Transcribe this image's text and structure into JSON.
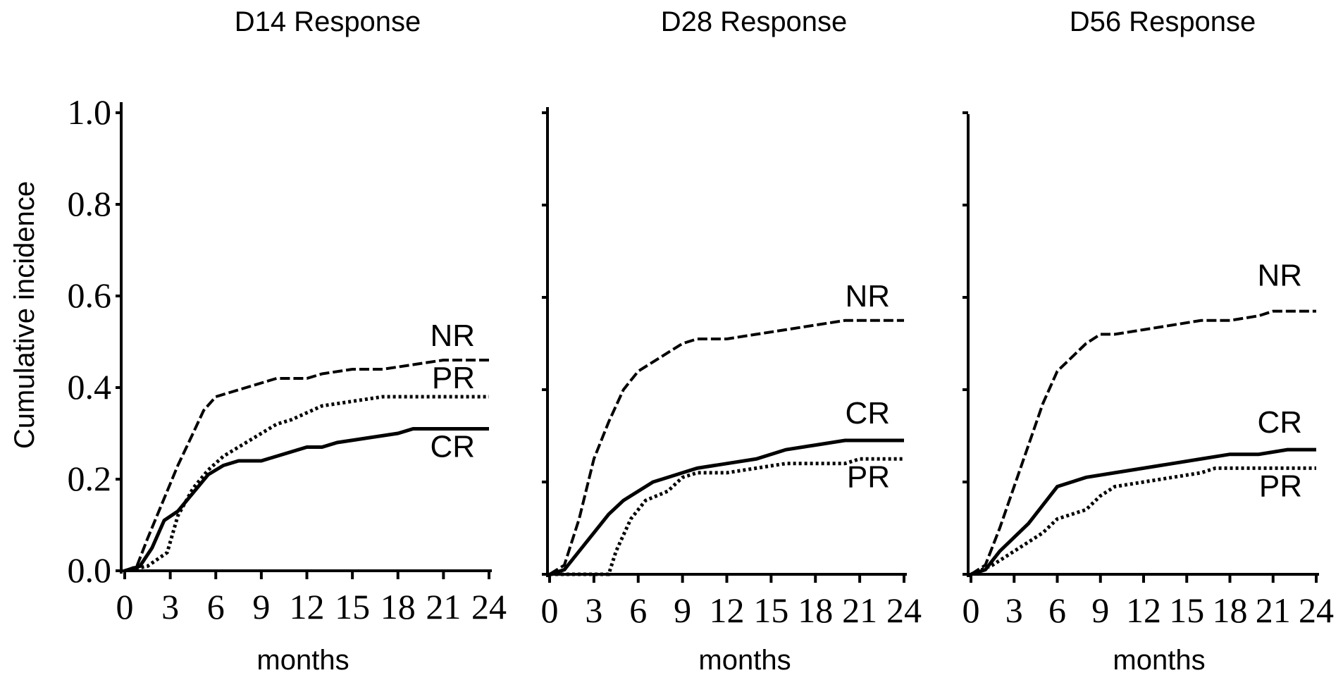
{
  "chart_data": [
    {
      "type": "line",
      "title": "D14 Response",
      "xlabel": "months",
      "ylabel": "Cumulative incidence",
      "xlim": [
        0,
        24
      ],
      "ylim": [
        0,
        1.0
      ],
      "x_ticks": [
        "0",
        "3",
        "6",
        "9",
        "12",
        "15",
        "18",
        "21",
        "24"
      ],
      "y_ticks": [
        "0.0",
        "0.2",
        "0.4",
        "0.6",
        "0.8",
        "1.0"
      ],
      "grid": false,
      "legend": "labels at right end of curves",
      "series": [
        {
          "name": "NR",
          "style": "dashed",
          "points": [
            [
              0,
              0
            ],
            [
              0.8,
              0.01
            ],
            [
              1.5,
              0.07
            ],
            [
              2.5,
              0.15
            ],
            [
              3.5,
              0.23
            ],
            [
              4.5,
              0.3
            ],
            [
              5.2,
              0.35
            ],
            [
              6,
              0.38
            ],
            [
              7,
              0.39
            ],
            [
              8,
              0.4
            ],
            [
              9,
              0.41
            ],
            [
              10,
              0.42
            ],
            [
              12,
              0.42
            ],
            [
              13,
              0.43
            ],
            [
              15,
              0.44
            ],
            [
              17,
              0.44
            ],
            [
              19,
              0.45
            ],
            [
              21,
              0.46
            ],
            [
              24,
              0.46
            ]
          ]
        },
        {
          "name": "PR",
          "style": "dotted",
          "points": [
            [
              0,
              0
            ],
            [
              1.5,
              0.01
            ],
            [
              2.8,
              0.04
            ],
            [
              3.5,
              0.12
            ],
            [
              4.5,
              0.18
            ],
            [
              5.5,
              0.22
            ],
            [
              6.5,
              0.25
            ],
            [
              8,
              0.28
            ],
            [
              9,
              0.3
            ],
            [
              10,
              0.32
            ],
            [
              11,
              0.33
            ],
            [
              13,
              0.36
            ],
            [
              15,
              0.37
            ],
            [
              17,
              0.38
            ],
            [
              24,
              0.38
            ]
          ]
        },
        {
          "name": "CR",
          "style": "solid",
          "points": [
            [
              0,
              0
            ],
            [
              1,
              0.01
            ],
            [
              1.8,
              0.05
            ],
            [
              2.6,
              0.11
            ],
            [
              3.5,
              0.13
            ],
            [
              4.5,
              0.17
            ],
            [
              5.5,
              0.21
            ],
            [
              6.5,
              0.23
            ],
            [
              7.5,
              0.24
            ],
            [
              9,
              0.24
            ],
            [
              10,
              0.25
            ],
            [
              11,
              0.26
            ],
            [
              12,
              0.27
            ],
            [
              13,
              0.27
            ],
            [
              14,
              0.28
            ],
            [
              16,
              0.29
            ],
            [
              18,
              0.3
            ],
            [
              19,
              0.31
            ],
            [
              24,
              0.31
            ]
          ]
        }
      ]
    },
    {
      "type": "line",
      "title": "D28 Response",
      "xlabel": "months",
      "ylabel": "",
      "xlim": [
        0,
        24
      ],
      "ylim": [
        0,
        1.0
      ],
      "x_ticks": [
        "0",
        "3",
        "6",
        "9",
        "12",
        "15",
        "18",
        "21",
        "24"
      ],
      "grid": false,
      "legend": "labels at right end of curves",
      "series": [
        {
          "name": "NR",
          "style": "dashed",
          "points": [
            [
              0,
              0
            ],
            [
              1,
              0.02
            ],
            [
              2,
              0.12
            ],
            [
              3,
              0.25
            ],
            [
              4,
              0.33
            ],
            [
              5,
              0.4
            ],
            [
              6,
              0.44
            ],
            [
              7,
              0.46
            ],
            [
              8,
              0.48
            ],
            [
              9,
              0.5
            ],
            [
              10,
              0.51
            ],
            [
              12,
              0.51
            ],
            [
              14,
              0.52
            ],
            [
              16,
              0.53
            ],
            [
              18,
              0.54
            ],
            [
              20,
              0.55
            ],
            [
              21,
              0.55
            ],
            [
              24,
              0.55
            ]
          ]
        },
        {
          "name": "CR",
          "style": "solid",
          "points": [
            [
              0,
              0
            ],
            [
              1,
              0.01
            ],
            [
              2,
              0.05
            ],
            [
              3,
              0.09
            ],
            [
              4,
              0.13
            ],
            [
              5,
              0.16
            ],
            [
              6,
              0.18
            ],
            [
              7,
              0.2
            ],
            [
              8,
              0.21
            ],
            [
              9,
              0.22
            ],
            [
              10,
              0.23
            ],
            [
              12,
              0.24
            ],
            [
              14,
              0.25
            ],
            [
              16,
              0.27
            ],
            [
              18,
              0.28
            ],
            [
              20,
              0.29
            ],
            [
              24,
              0.29
            ]
          ]
        },
        {
          "name": "PR",
          "style": "dotted",
          "points": [
            [
              0,
              0
            ],
            [
              4,
              0
            ],
            [
              4.5,
              0.05
            ],
            [
              5.5,
              0.12
            ],
            [
              6.5,
              0.16
            ],
            [
              8,
              0.18
            ],
            [
              9,
              0.21
            ],
            [
              10,
              0.22
            ],
            [
              12,
              0.22
            ],
            [
              14,
              0.23
            ],
            [
              16,
              0.24
            ],
            [
              20,
              0.24
            ],
            [
              21,
              0.25
            ],
            [
              24,
              0.25
            ]
          ]
        }
      ]
    },
    {
      "type": "line",
      "title": "D56 Response",
      "xlabel": "months",
      "ylabel": "",
      "xlim": [
        0,
        24
      ],
      "ylim": [
        0,
        1.0
      ],
      "x_ticks": [
        "0",
        "3",
        "6",
        "9",
        "12",
        "15",
        "18",
        "21",
        "24"
      ],
      "grid": false,
      "legend": "labels at right end of curves",
      "series": [
        {
          "name": "NR",
          "style": "dashed",
          "points": [
            [
              0,
              0
            ],
            [
              1,
              0.02
            ],
            [
              2,
              0.1
            ],
            [
              3,
              0.19
            ],
            [
              4,
              0.28
            ],
            [
              5,
              0.37
            ],
            [
              6,
              0.44
            ],
            [
              7,
              0.47
            ],
            [
              8,
              0.5
            ],
            [
              9,
              0.52
            ],
            [
              10,
              0.52
            ],
            [
              12,
              0.53
            ],
            [
              14,
              0.54
            ],
            [
              16,
              0.55
            ],
            [
              18,
              0.55
            ],
            [
              20,
              0.56
            ],
            [
              21,
              0.57
            ],
            [
              24,
              0.57
            ]
          ]
        },
        {
          "name": "CR",
          "style": "solid",
          "points": [
            [
              0,
              0
            ],
            [
              1,
              0.01
            ],
            [
              2,
              0.05
            ],
            [
              3,
              0.08
            ],
            [
              4,
              0.11
            ],
            [
              5,
              0.15
            ],
            [
              6,
              0.19
            ],
            [
              7,
              0.2
            ],
            [
              8,
              0.21
            ],
            [
              10,
              0.22
            ],
            [
              12,
              0.23
            ],
            [
              14,
              0.24
            ],
            [
              16,
              0.25
            ],
            [
              18,
              0.26
            ],
            [
              20,
              0.26
            ],
            [
              22,
              0.27
            ],
            [
              24,
              0.27
            ]
          ]
        },
        {
          "name": "PR",
          "style": "dotted",
          "points": [
            [
              0,
              0
            ],
            [
              1.5,
              0.02
            ],
            [
              3,
              0.05
            ],
            [
              5,
              0.09
            ],
            [
              6,
              0.12
            ],
            [
              8,
              0.14
            ],
            [
              9,
              0.17
            ],
            [
              10,
              0.19
            ],
            [
              12,
              0.2
            ],
            [
              14,
              0.21
            ],
            [
              16,
              0.22
            ],
            [
              17,
              0.23
            ],
            [
              24,
              0.23
            ]
          ]
        }
      ]
    }
  ]
}
